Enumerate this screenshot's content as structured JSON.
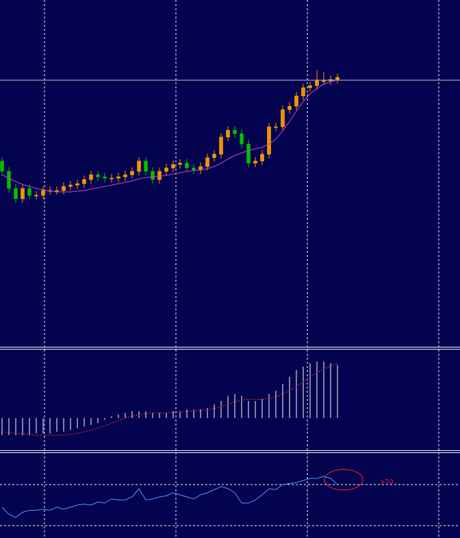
{
  "chart_data": [
    {
      "type": "candlestick",
      "ylim": [
        0,
        505
      ],
      "up_color": "#ff8c00",
      "down_color": "#00c000",
      "ma_color": "#d040d0",
      "price_line": 388,
      "open": [
        270,
        255,
        230,
        215,
        230,
        220,
        220,
        227,
        227,
        227,
        233,
        235,
        237,
        243,
        250,
        247,
        245,
        245,
        247,
        250,
        255,
        270,
        255,
        243,
        255,
        260,
        265,
        267,
        260,
        257,
        262,
        275,
        280,
        305,
        315,
        310,
        295,
        267,
        270,
        280,
        320,
        320,
        345,
        350,
        365,
        377,
        380,
        387,
        387,
        389
      ],
      "high": [
        276,
        261,
        236,
        236,
        236,
        226,
        233,
        233,
        233,
        239,
        241,
        243,
        249,
        256,
        256,
        253,
        251,
        253,
        256,
        261,
        276,
        276,
        261,
        261,
        266,
        271,
        273,
        273,
        266,
        268,
        281,
        286,
        311,
        321,
        321,
        316,
        301,
        276,
        286,
        326,
        326,
        351,
        356,
        371,
        383,
        386,
        403,
        400,
        395,
        398
      ],
      "low": [
        249,
        224,
        209,
        209,
        214,
        214,
        214,
        221,
        221,
        221,
        227,
        229,
        231,
        237,
        241,
        239,
        239,
        239,
        241,
        244,
        249,
        249,
        237,
        237,
        249,
        254,
        259,
        254,
        251,
        251,
        256,
        269,
        274,
        299,
        304,
        289,
        261,
        261,
        264,
        274,
        314,
        314,
        339,
        344,
        359,
        371,
        374,
        381,
        381,
        383
      ],
      "close": [
        255,
        230,
        215,
        230,
        220,
        220,
        227,
        227,
        227,
        233,
        235,
        237,
        243,
        250,
        247,
        245,
        245,
        247,
        250,
        255,
        270,
        255,
        243,
        255,
        260,
        265,
        267,
        260,
        257,
        262,
        275,
        280,
        305,
        315,
        310,
        295,
        267,
        270,
        280,
        320,
        320,
        345,
        350,
        365,
        377,
        380,
        387,
        387,
        389,
        392
      ],
      "ma": [
        250,
        245,
        240,
        236,
        233,
        230,
        228,
        226,
        225,
        225,
        225,
        226,
        227,
        229,
        231,
        233,
        235,
        237,
        239,
        241,
        244,
        246,
        247,
        248,
        249,
        251,
        253,
        255,
        256,
        257,
        259,
        262,
        267,
        273,
        278,
        282,
        285,
        288,
        290,
        295,
        302,
        314,
        328,
        343,
        357,
        368,
        376,
        382,
        386,
        388
      ]
    },
    {
      "type": "macd",
      "ylim": [
        -2,
        4
      ],
      "hist_color": "#ffffff",
      "signal_color": "#ff3030",
      "histogram": [
        -1,
        -1,
        -1,
        -1,
        -1,
        -0.9,
        -0.9,
        -0.9,
        -0.8,
        -0.8,
        -0.7,
        -0.6,
        -0.5,
        -0.4,
        -0.3,
        -0.1,
        0.1,
        0.2,
        0.3,
        0.4,
        0.4,
        0.4,
        0.3,
        0.3,
        0.3,
        0.4,
        0.4,
        0.5,
        0.5,
        0.5,
        0.6,
        0.8,
        1.0,
        1.3,
        1.4,
        1.3,
        1.0,
        1.0,
        1.1,
        1.4,
        1.6,
        2.0,
        2.4,
        2.8,
        3.0,
        3.2,
        3.3,
        3.3,
        3.2,
        3.1
      ],
      "signal": [
        -0.8,
        -0.85,
        -0.9,
        -0.9,
        -0.95,
        -1,
        -1,
        -1,
        -1,
        -1,
        -0.95,
        -0.9,
        -0.8,
        -0.7,
        -0.6,
        -0.45,
        -0.3,
        -0.15,
        0,
        0.1,
        0.2,
        0.25,
        0.3,
        0.3,
        0.3,
        0.35,
        0.35,
        0.4,
        0.4,
        0.45,
        0.5,
        0.55,
        0.65,
        0.8,
        0.95,
        1.05,
        1.1,
        1.1,
        1.1,
        1.15,
        1.25,
        1.4,
        1.6,
        1.85,
        2.1,
        2.4,
        2.65,
        2.85,
        3.05,
        3.2
      ]
    },
    {
      "type": "line",
      "ylim": [
        18,
        100
      ],
      "color": "#5599ff",
      "yticks": [
        {
          "value": 30,
          "label": null
        },
        70
      ],
      "values": [
        48,
        41,
        38,
        43,
        45,
        45,
        46,
        45,
        48,
        46,
        48,
        50,
        51,
        50,
        53,
        52,
        56,
        55,
        55,
        58,
        66,
        55,
        56,
        58,
        59,
        62,
        60,
        58,
        56,
        60,
        62,
        65,
        68,
        66,
        62,
        52,
        52,
        55,
        60,
        66,
        65,
        70,
        71,
        72,
        74,
        76,
        76,
        78,
        76,
        70
      ]
    }
  ]
}
